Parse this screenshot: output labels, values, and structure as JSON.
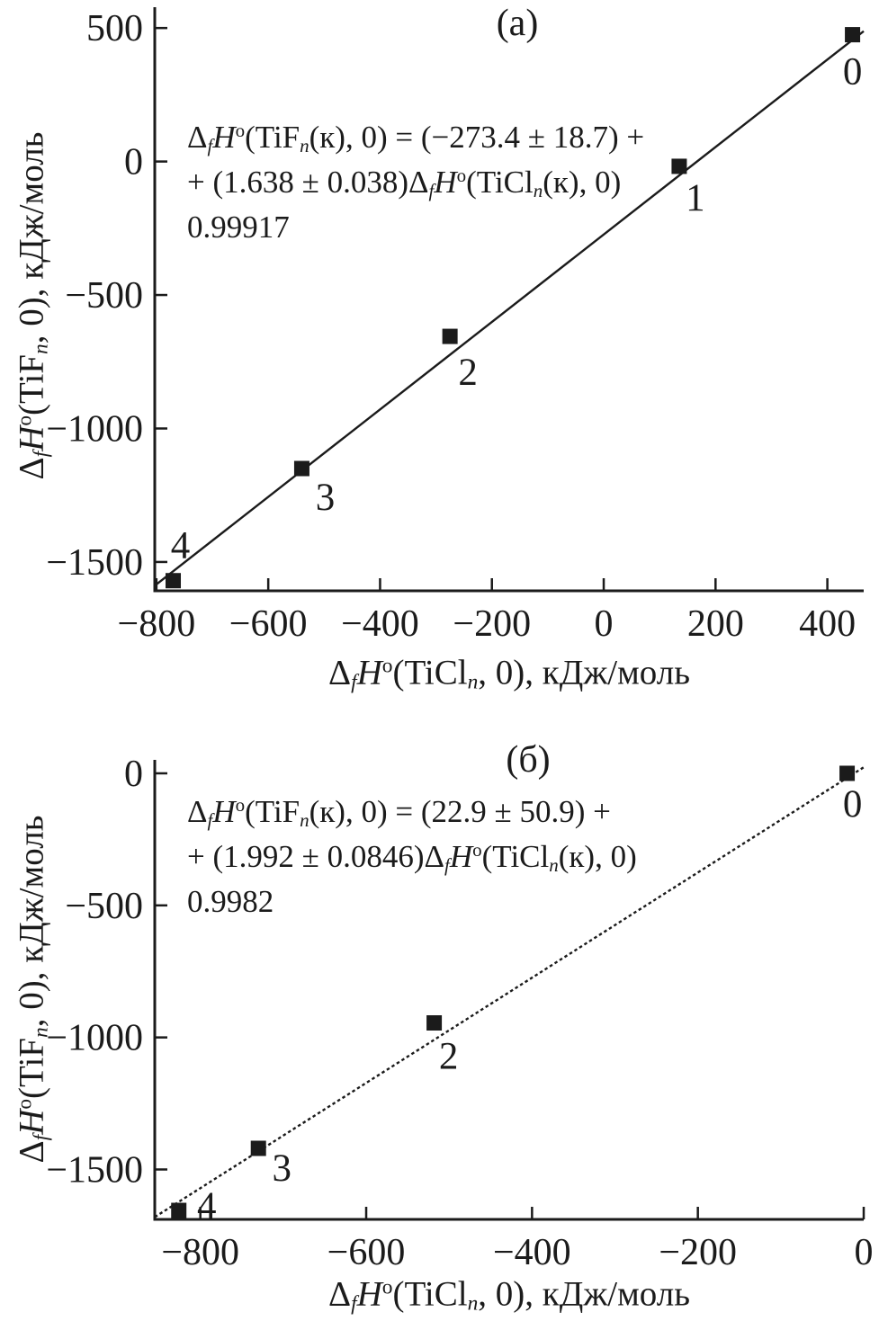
{
  "figure": {
    "background": "#ffffff",
    "ink": "#1b1b1b",
    "marker_shape": "filled-square",
    "units": "кДж/моль"
  },
  "chart_data": [
    {
      "panel": "a",
      "type": "scatter",
      "title": "(а)",
      "xlabel": "Δ~*f*~*H*^о^(TiCl~*n*~, 0), кДж/моль",
      "ylabel": "Δ~*f*~*H*^о^(TiF~*n*~, 0), кДж/моль",
      "xlim": [
        -803,
        465
      ],
      "ylim": [
        -1608,
        578
      ],
      "xticks": [
        -800,
        -600,
        -400,
        -200,
        0,
        200,
        400
      ],
      "yticks": [
        500,
        0,
        -500,
        -1000,
        -1500
      ],
      "grid": false,
      "points": [
        {
          "label": "0",
          "x": 445,
          "y": 475,
          "label_offset": [
            0,
            40
          ]
        },
        {
          "label": "1",
          "x": 135,
          "y": -18,
          "label_offset": [
            18,
            34
          ]
        },
        {
          "label": "2",
          "x": -275,
          "y": -655,
          "label_offset": [
            20,
            39
          ]
        },
        {
          "label": "3",
          "x": -540,
          "y": -1150,
          "label_offset": [
            26,
            31
          ]
        },
        {
          "label": "4",
          "x": -770,
          "y": -1570,
          "label_offset": [
            8,
            -40
          ]
        }
      ],
      "fit": {
        "intercept": -273.4,
        "intercept_err": 18.7,
        "slope": 1.638,
        "slope_err": 0.038,
        "r": "0.99917",
        "line_style": "solid"
      },
      "annotation": [
        "Δ~*f*~*H*^о^(TiF~*n*~(к), 0) = (−273.4 ± 18.7) +",
        "+ (1.638 ± 0.038)Δ~*f*~*H*^о^(TiCl~*n*~(к), 0)",
        "0.99917"
      ]
    },
    {
      "panel": "б",
      "type": "scatter",
      "title": "(б)",
      "xlabel": "Δ~*f*~*H*^о^(TiCl~*n*~, 0), кДж/моль",
      "ylabel": "Δ~*f*~*H*^о^(TiF~*n*~, 0), кДж/моль",
      "xlim": [
        -855,
        0
      ],
      "ylim": [
        -1689,
        51
      ],
      "xticks": [
        -800,
        -600,
        -400,
        -200,
        0
      ],
      "yticks": [
        0,
        -500,
        -1000,
        -1500
      ],
      "grid": false,
      "points": [
        {
          "label": "0",
          "x": -20,
          "y": 0,
          "label_offset": [
            6,
            33
          ]
        },
        {
          "label": "2",
          "x": -518,
          "y": -945,
          "label_offset": [
            16,
            36
          ]
        },
        {
          "label": "3",
          "x": -730,
          "y": -1420,
          "label_offset": [
            26,
            21
          ]
        },
        {
          "label": "4",
          "x": -826,
          "y": -1655,
          "label_offset": [
            31,
            -6
          ]
        }
      ],
      "fit": {
        "intercept": 22.9,
        "intercept_err": 50.9,
        "slope": 1.992,
        "slope_err": 0.0846,
        "r": "0.9982",
        "line_style": "dotted"
      },
      "annotation": [
        "Δ~*f*~*H*^о^(TiF~*n*~(к), 0) = (22.9 ± 50.9) +",
        "+ (1.992 ± 0.0846)Δ~*f*~*H*^о^(TiCl~*n*~(к), 0)",
        "0.9982"
      ]
    }
  ]
}
